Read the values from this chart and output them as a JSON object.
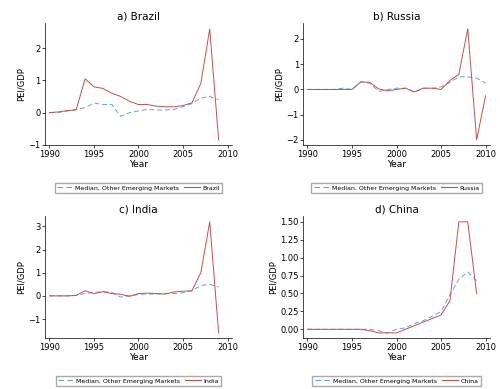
{
  "years": [
    1990,
    1991,
    1992,
    1993,
    1994,
    1995,
    1996,
    1997,
    1998,
    1999,
    2000,
    2001,
    2002,
    2003,
    2004,
    2005,
    2006,
    2007,
    2008,
    2009,
    2010
  ],
  "brazil": [
    0.0,
    0.02,
    0.06,
    0.08,
    1.05,
    0.8,
    0.75,
    0.6,
    0.5,
    0.35,
    0.25,
    0.25,
    0.2,
    0.18,
    0.18,
    0.22,
    0.3,
    0.9,
    2.6,
    -0.85,
    null
  ],
  "brazil_med": [
    0.0,
    0.0,
    0.05,
    0.1,
    0.15,
    0.3,
    0.25,
    0.25,
    -0.12,
    0.0,
    0.05,
    0.1,
    0.08,
    0.08,
    0.1,
    0.18,
    0.28,
    0.45,
    0.5,
    0.4,
    null
  ],
  "russia": [
    0.0,
    0.0,
    0.0,
    0.0,
    0.0,
    0.0,
    0.3,
    0.28,
    0.02,
    -0.05,
    0.0,
    0.05,
    -0.1,
    0.05,
    0.05,
    0.0,
    0.35,
    0.6,
    2.4,
    -2.0,
    -0.25
  ],
  "russia_med": [
    0.0,
    0.0,
    0.0,
    0.0,
    0.05,
    0.0,
    0.3,
    0.25,
    -0.08,
    0.0,
    0.05,
    0.05,
    -0.1,
    0.05,
    0.05,
    0.1,
    0.28,
    0.5,
    0.5,
    0.45,
    0.25
  ],
  "india": [
    0.0,
    0.0,
    0.0,
    0.02,
    0.22,
    0.1,
    0.18,
    0.1,
    0.07,
    -0.02,
    0.1,
    0.12,
    0.1,
    0.08,
    0.17,
    0.2,
    0.22,
    1.0,
    3.2,
    -1.6,
    null
  ],
  "india_med": [
    0.0,
    0.0,
    0.0,
    0.02,
    0.1,
    0.15,
    0.18,
    0.15,
    -0.05,
    0.0,
    0.06,
    0.08,
    0.08,
    0.1,
    0.1,
    0.13,
    0.22,
    0.45,
    0.5,
    0.38,
    null
  ],
  "china": [
    0.0,
    0.0,
    0.0,
    0.0,
    0.0,
    0.0,
    0.0,
    -0.02,
    -0.05,
    -0.05,
    -0.05,
    0.0,
    0.05,
    0.1,
    0.15,
    0.2,
    0.4,
    1.5,
    1.5,
    0.5,
    null
  ],
  "china_med": [
    0.0,
    0.0,
    0.0,
    0.0,
    0.0,
    0.0,
    0.0,
    0.0,
    -0.02,
    -0.05,
    0.0,
    0.02,
    0.08,
    0.12,
    0.18,
    0.25,
    0.48,
    0.7,
    0.8,
    0.68,
    null
  ],
  "country_color": "#c0504d",
  "median_color": "#6aa4c8",
  "titles": [
    "a) Brazil",
    "b) Russia",
    "c) India",
    "d) China"
  ],
  "country_labels": [
    "Brazil",
    "Russia",
    "India",
    "China"
  ],
  "ylabel": "PEI/GDP",
  "xlabel": "Year",
  "xticks": [
    1990,
    1995,
    2000,
    2005,
    2010
  ]
}
